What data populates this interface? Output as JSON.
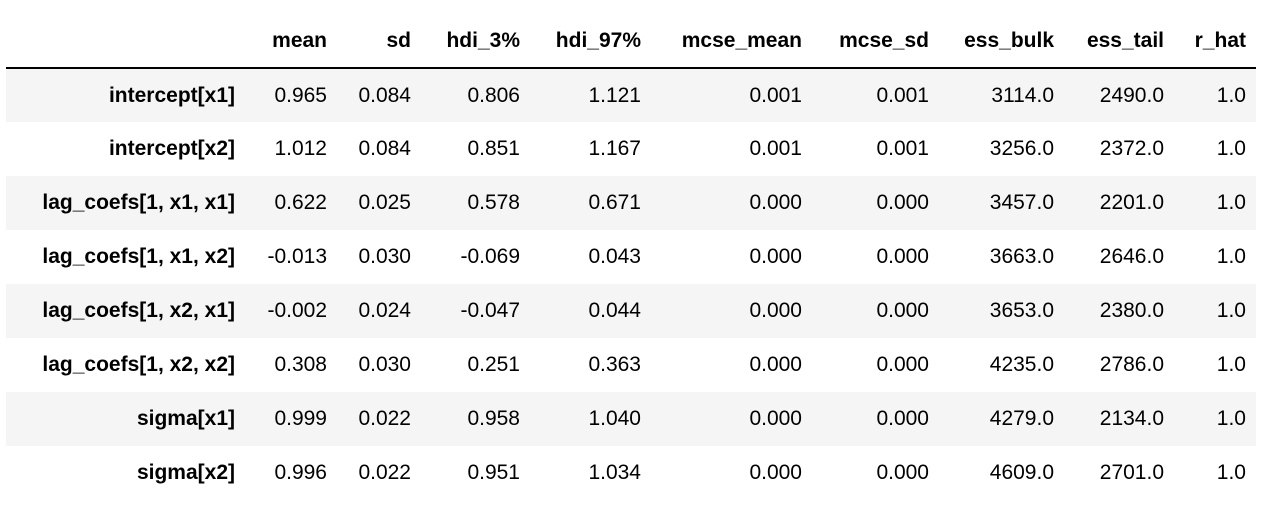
{
  "table": {
    "columns": [
      "",
      "mean",
      "sd",
      "hdi_3%",
      "hdi_97%",
      "mcse_mean",
      "mcse_sd",
      "ess_bulk",
      "ess_tail",
      "r_hat"
    ],
    "rows": [
      [
        "intercept[x1]",
        "0.965",
        "0.084",
        "0.806",
        "1.121",
        "0.001",
        "0.001",
        "3114.0",
        "2490.0",
        "1.0"
      ],
      [
        "intercept[x2]",
        "1.012",
        "0.084",
        "0.851",
        "1.167",
        "0.001",
        "0.001",
        "3256.0",
        "2372.0",
        "1.0"
      ],
      [
        "lag_coefs[1, x1, x1]",
        "0.622",
        "0.025",
        "0.578",
        "0.671",
        "0.000",
        "0.000",
        "3457.0",
        "2201.0",
        "1.0"
      ],
      [
        "lag_coefs[1, x1, x2]",
        "-0.013",
        "0.030",
        "-0.069",
        "0.043",
        "0.000",
        "0.000",
        "3663.0",
        "2646.0",
        "1.0"
      ],
      [
        "lag_coefs[1, x2, x1]",
        "-0.002",
        "0.024",
        "-0.047",
        "0.044",
        "0.000",
        "0.000",
        "3653.0",
        "2380.0",
        "1.0"
      ],
      [
        "lag_coefs[1, x2, x2]",
        "0.308",
        "0.030",
        "0.251",
        "0.363",
        "0.000",
        "0.000",
        "4235.0",
        "2786.0",
        "1.0"
      ],
      [
        "sigma[x1]",
        "0.999",
        "0.022",
        "0.958",
        "1.040",
        "0.000",
        "0.000",
        "4279.0",
        "2134.0",
        "1.0"
      ],
      [
        "sigma[x2]",
        "0.996",
        "0.022",
        "0.951",
        "1.034",
        "0.000",
        "0.000",
        "4609.0",
        "2701.0",
        "1.0"
      ]
    ]
  }
}
